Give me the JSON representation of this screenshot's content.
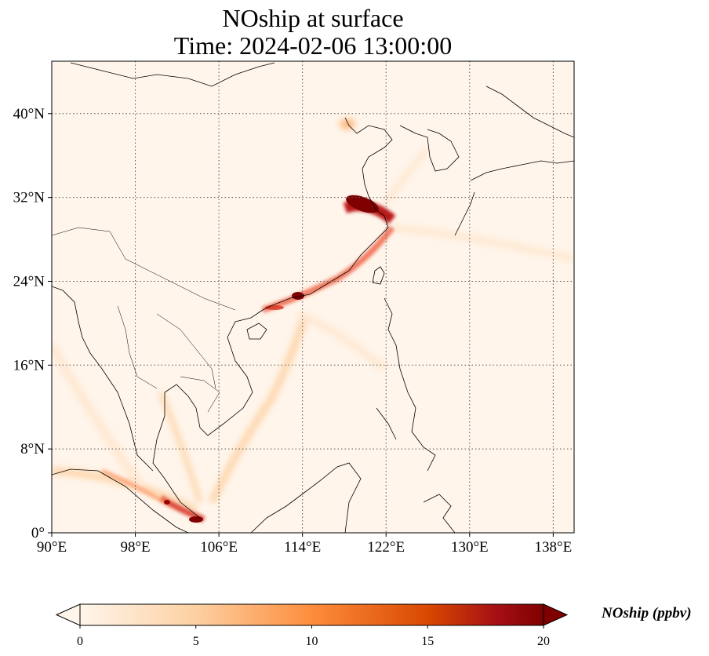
{
  "title": {
    "line1": "NOship at surface",
    "line2": "Time: 2024-02-06 13:00:00"
  },
  "map": {
    "extent": {
      "lon": [
        90,
        140
      ],
      "lat": [
        0,
        45
      ]
    },
    "lon_ticks": [
      {
        "value": 90,
        "label": "90°E"
      },
      {
        "value": 98,
        "label": "98°E"
      },
      {
        "value": 106,
        "label": "106°E"
      },
      {
        "value": 114,
        "label": "114°E"
      },
      {
        "value": 122,
        "label": "122°E"
      },
      {
        "value": 130,
        "label": "130°E"
      },
      {
        "value": 138,
        "label": "138°E"
      }
    ],
    "lat_ticks": [
      {
        "value": 0,
        "label": "0°"
      },
      {
        "value": 8,
        "label": "8°N"
      },
      {
        "value": 16,
        "label": "16°N"
      },
      {
        "value": 24,
        "label": "24°N"
      },
      {
        "value": 32,
        "label": "32°N"
      },
      {
        "value": 40,
        "label": "40°N"
      }
    ],
    "gridlines": true,
    "background_color": "#fff5eb",
    "colors": {
      "low": "#fff5eb",
      "mid": "#fdae6b",
      "high": "#7f0000"
    }
  },
  "colorbar": {
    "label": "NOship (ppbv)",
    "min": 0,
    "max": 20,
    "colormap": "OrRd",
    "extend": "both",
    "ticks": [
      {
        "value": 0,
        "label": "0"
      },
      {
        "value": 5,
        "label": "5"
      },
      {
        "value": 10,
        "label": "10"
      },
      {
        "value": 15,
        "label": "15"
      },
      {
        "value": 20,
        "label": "20"
      }
    ]
  }
}
